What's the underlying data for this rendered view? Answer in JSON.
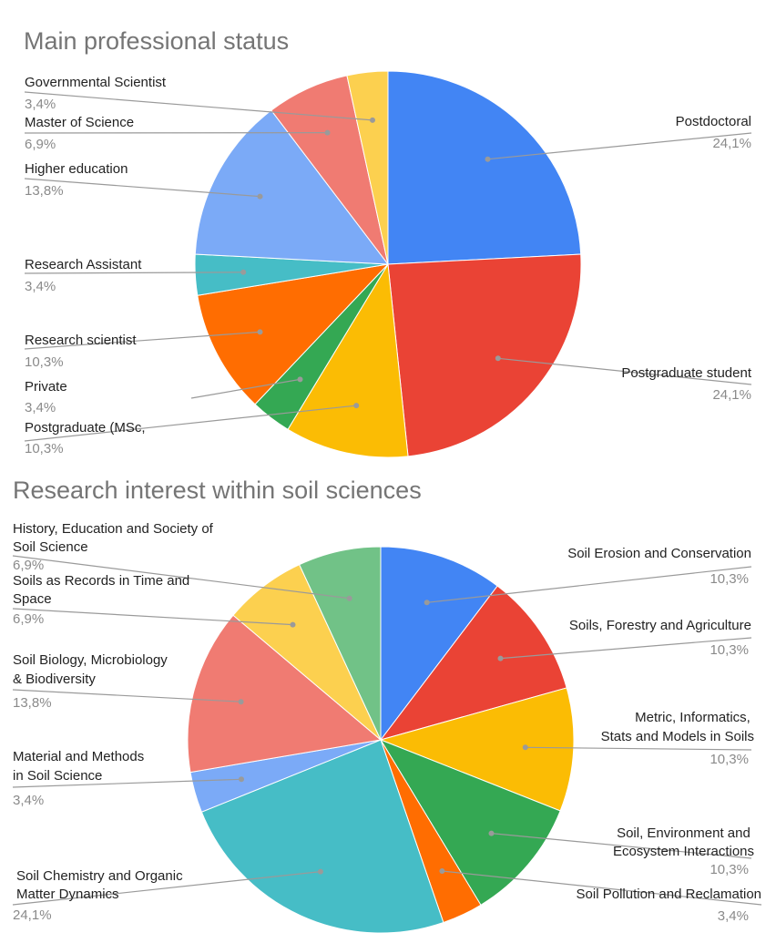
{
  "chart_data": [
    {
      "type": "pie",
      "title": "Main professional status",
      "series": [
        {
          "label": "Postdoctoral",
          "value": 24.1,
          "value_label": "24,1%",
          "color": "#4285F4"
        },
        {
          "label": "Postgraduate student",
          "value": 24.1,
          "value_label": "24,1%",
          "color": "#EA4335"
        },
        {
          "label": "Postgraduate (MSc,",
          "value": 10.3,
          "value_label": "10,3%",
          "color": "#FBBC04"
        },
        {
          "label": "Private",
          "value": 3.4,
          "value_label": "3,4%",
          "color": "#34A853"
        },
        {
          "label": "Research scientist",
          "value": 10.3,
          "value_label": "10,3%",
          "color": "#FF6D01"
        },
        {
          "label": "Research Assistant",
          "value": 3.4,
          "value_label": "3,4%",
          "color": "#46BDC6"
        },
        {
          "label": "Higher education",
          "value": 13.8,
          "value_label": "13,8%",
          "color": "#7BAAF7"
        },
        {
          "label": "Master of Science",
          "value": 6.9,
          "value_label": "6,9%",
          "color": "#F07B72"
        },
        {
          "label": "Governmental Scientist",
          "value": 3.4,
          "value_label": "3,4%",
          "color": "#FCD04F"
        }
      ]
    },
    {
      "type": "pie",
      "title": "Research interest within soil sciences",
      "series": [
        {
          "label": "Soil Erosion and Conservation",
          "value": 10.3,
          "value_label": "10,3%",
          "color": "#4285F4"
        },
        {
          "label": "Soils, Forestry and Agriculture",
          "value": 10.3,
          "value_label": "10,3%",
          "color": "#EA4335"
        },
        {
          "label": "Metric, Informatics, Stats and Models in Soils",
          "value": 10.3,
          "value_label": "10,3%",
          "color": "#FBBC04"
        },
        {
          "label": "Soil, Environment and Ecosystem Interactions",
          "value": 10.3,
          "value_label": "10,3%",
          "color": "#34A853"
        },
        {
          "label": "Soil Pollution and Reclamation",
          "value": 3.4,
          "value_label": "3,4%",
          "color": "#FF6D01"
        },
        {
          "label": "Soil Chemistry and Organic Matter Dynamics",
          "value": 24.1,
          "value_label": "24,1%",
          "color": "#46BDC6"
        },
        {
          "label": "Material and Methods in Soil Science",
          "value": 3.4,
          "value_label": "3,4%",
          "color": "#7BAAF7"
        },
        {
          "label": "Soil Biology, Microbiology & Biodiversity",
          "value": 13.8,
          "value_label": "13,8%",
          "color": "#F07B72"
        },
        {
          "label": "Soils as Records in Time and Space",
          "value": 6.9,
          "value_label": "6,9%",
          "color": "#FCD04F"
        },
        {
          "label": "History, Education and Society of Soil Science",
          "value": 6.9,
          "value_label": "6,9%",
          "color": "#71C287"
        }
      ]
    }
  ]
}
